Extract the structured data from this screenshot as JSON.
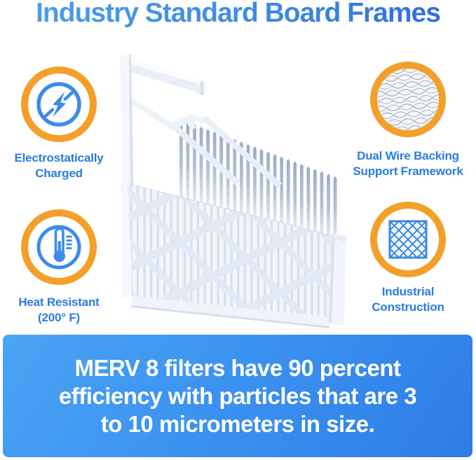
{
  "title": "Industry Standard Board Frames",
  "features": [
    {
      "name": "electrostatically-charged",
      "icon": "lightning-icon",
      "lines": [
        "Electrostatically",
        "Charged"
      ]
    },
    {
      "name": "dual-wire-backing",
      "icon": "wire-mesh-icon",
      "lines": [
        "Dual Wire Backing",
        "Support Framework"
      ]
    },
    {
      "name": "heat-resistant",
      "icon": "thermometer-icon",
      "lines": [
        "Heat Resistant",
        "(200° F)"
      ]
    },
    {
      "name": "industrial-construction",
      "icon": "diamond-lattice-icon",
      "lines": [
        "Industrial",
        "Construction"
      ]
    }
  ],
  "illustration": {
    "name": "pleated-air-filter-board-frame"
  },
  "banner": {
    "lines": [
      "MERV 8 filters have 90 percent",
      "efficiency with particles that are 3",
      "to 10 micrometers in size."
    ]
  },
  "colors": {
    "title_gradient_start": "#4f9fe9",
    "title_gradient_end": "#2e6bd3",
    "accent_orange": "#f3a02b",
    "label_blue": "#2a7ce2",
    "icon_blue": "#3b8ce8",
    "banner_gradient_start": "#4ba4f4",
    "banner_gradient_end": "#2e7ce6",
    "banner_text": "#ffffff"
  }
}
